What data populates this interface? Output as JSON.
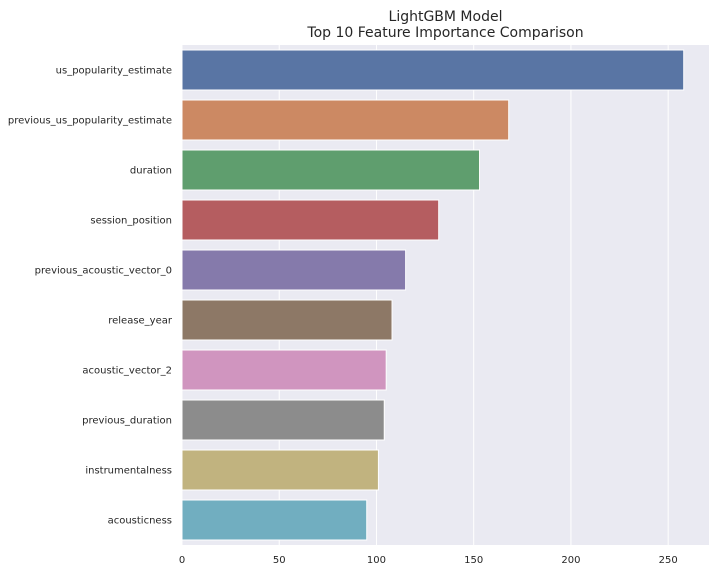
{
  "chart_data": {
    "type": "bar",
    "orientation": "horizontal",
    "title": [
      "LightGBM Model",
      "Top 10 Feature Importance Comparison"
    ],
    "xlabel": "",
    "ylabel": "",
    "categories": [
      "us_popularity_estimate",
      "previous_us_popularity_estimate",
      "duration",
      "session_position",
      "previous_acoustic_vector_0",
      "release_year",
      "acoustic_vector_2",
      "previous_duration",
      "instrumentalness",
      "acousticness"
    ],
    "values": [
      258,
      168,
      153,
      132,
      115,
      108,
      105,
      104,
      101,
      95
    ],
    "colors": [
      "#5975a4",
      "#cc8963",
      "#5f9e6e",
      "#b55d60",
      "#857aab",
      "#8d7866",
      "#d095bf",
      "#8c8c8c",
      "#c1b37f",
      "#71aec0"
    ],
    "xlim": [
      0,
      271
    ],
    "xticks": [
      0,
      50,
      100,
      150,
      200,
      250
    ],
    "grid": true,
    "background": "#eaeaf2"
  }
}
